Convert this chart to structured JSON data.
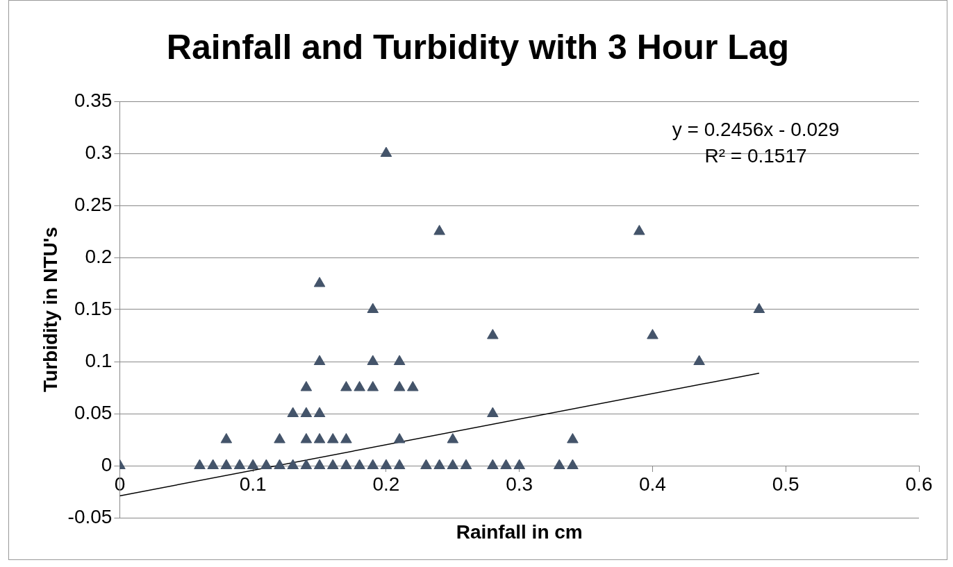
{
  "chart_data": {
    "type": "scatter",
    "title": "Rainfall and Turbidity with 3 Hour Lag",
    "xlabel": "Rainfall in cm",
    "ylabel": "Turbidity in NTU's",
    "xlim": [
      0,
      0.6
    ],
    "xticks": [
      0,
      0.1,
      0.2,
      0.3,
      0.4,
      0.5,
      0.6
    ],
    "ylim": [
      -0.05,
      0.35
    ],
    "yticks": [
      -0.05,
      0,
      0.05,
      0.1,
      0.15,
      0.2,
      0.25,
      0.3,
      0.35
    ],
    "grid": "y",
    "legend": false,
    "marker": "triangle",
    "annotations": [
      "y = 0.2456x - 0.029",
      "R² = 0.1517"
    ],
    "series": [
      {
        "color": "#44546a",
        "x": [
          0,
          0.06,
          0.07,
          0.08,
          0.09,
          0.1,
          0.11,
          0.12,
          0.13,
          0.14,
          0.15,
          0.16,
          0.17,
          0.18,
          0.19,
          0.2,
          0.21,
          0.23,
          0.24,
          0.25,
          0.26,
          0.28,
          0.29,
          0.3,
          0.33,
          0.34,
          0.08,
          0.12,
          0.14,
          0.15,
          0.16,
          0.17,
          0.21,
          0.25,
          0.34,
          0.13,
          0.14,
          0.15,
          0.28,
          0.14,
          0.17,
          0.18,
          0.19,
          0.21,
          0.22,
          0.15,
          0.19,
          0.21,
          0.435,
          0.28,
          0.4,
          0.19,
          0.48,
          0.15,
          0.24,
          0.39,
          0.2
        ],
        "values": [
          0,
          0,
          0,
          0,
          0,
          0,
          0,
          0,
          0,
          0,
          0,
          0,
          0,
          0,
          0,
          0,
          0,
          0,
          0,
          0,
          0,
          0,
          0,
          0,
          0,
          0,
          0.025,
          0.025,
          0.025,
          0.025,
          0.025,
          0.025,
          0.025,
          0.025,
          0.025,
          0.05,
          0.05,
          0.05,
          0.05,
          0.075,
          0.075,
          0.075,
          0.075,
          0.075,
          0.075,
          0.1,
          0.1,
          0.1,
          0.1,
          0.125,
          0.125,
          0.15,
          0.15,
          0.175,
          0.225,
          0.225,
          0.3
        ]
      },
      {
        "type": "line",
        "marker": "none",
        "color": "#000000",
        "x": [
          0,
          0.48
        ],
        "values": [
          -0.029,
          0.0889
        ]
      }
    ]
  }
}
